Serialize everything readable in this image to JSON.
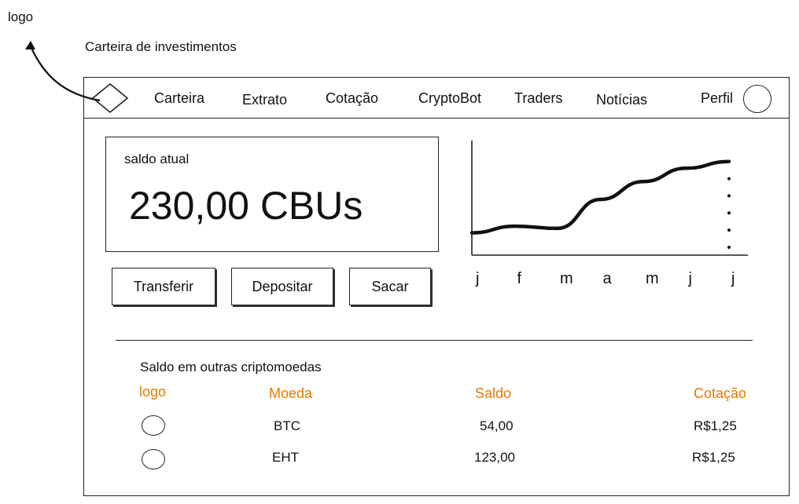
{
  "annotations": {
    "logo_label": "logo",
    "title": "Carteira de investimentos"
  },
  "nav": {
    "items": [
      "Carteira",
      "Extrato",
      "Cotação",
      "CryptoBot",
      "Traders",
      "Notícias"
    ],
    "profile_label": "Perfil"
  },
  "balance": {
    "label": "saldo atual",
    "value": "230,00 CBUs"
  },
  "actions": {
    "transfer": "Transferir",
    "deposit": "Depositar",
    "withdraw": "Sacar"
  },
  "chart_data": {
    "type": "line",
    "categories": [
      "j",
      "f",
      "m",
      "a",
      "m",
      "j",
      "j"
    ],
    "series": [
      {
        "values": [
          1.0,
          1.3,
          1.2,
          2.5,
          3.3,
          3.9,
          4.2
        ]
      }
    ],
    "ylim": [
      0,
      5
    ],
    "grid": false
  },
  "other_coins": {
    "title": "Saldo em outras criptomoedas",
    "headers": {
      "logo": "logo",
      "coin": "Moeda",
      "balance": "Saldo",
      "quote": "Cotação"
    },
    "rows": [
      {
        "coin": "BTC",
        "balance": "54,00",
        "quote": "R$1,25"
      },
      {
        "coin": "EHT",
        "balance": "123,00",
        "quote": "R$1,25"
      }
    ]
  },
  "colors": {
    "header_accent": "#e07b00",
    "stroke": "#222222"
  }
}
